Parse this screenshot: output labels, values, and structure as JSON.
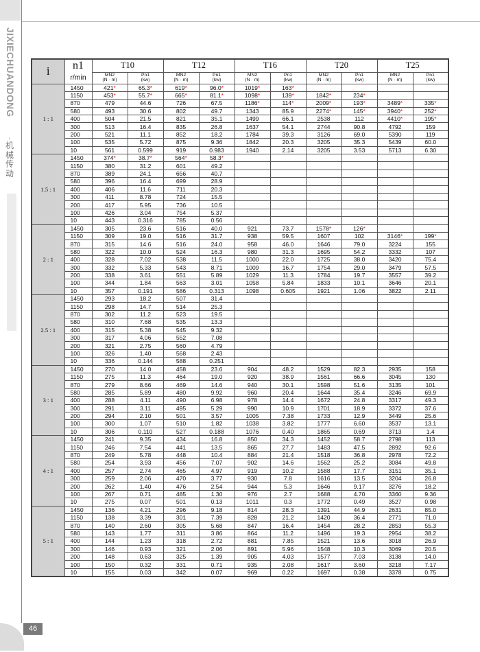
{
  "sidebar": {
    "brand": "JIXIECHUANDONG",
    "brand_cn": "机械传动"
  },
  "page_number": "46",
  "colors": {
    "asterisk": "#e01010",
    "ratio_bg": "#d2d2d2"
  },
  "table": {
    "i_header": "i",
    "n1_header": "n1",
    "n1_unit": "r/min",
    "models": [
      "T10",
      "T12",
      "T16",
      "T20",
      "T25"
    ],
    "sub_headers": [
      [
        "MN2",
        "(N · m)"
      ],
      [
        "Pn1",
        "(kw)"
      ]
    ],
    "groups": [
      {
        "ratio": "1 : 1",
        "rows": [
          [
            "1450",
            "421*",
            "65.3*",
            "619*",
            "96.0*",
            "1019*",
            "163*",
            "",
            "",
            "",
            ""
          ],
          [
            "1150",
            "453*",
            "55.7*",
            "665*",
            "81.1*",
            "1098*",
            "139*",
            "1842*",
            "234*",
            "",
            ""
          ],
          [
            "870",
            "479",
            "44.6",
            "726",
            "67.5",
            "1186*",
            "114*",
            "2009*",
            "193*",
            "3489*",
            "335*"
          ],
          [
            "580",
            "493",
            "30.6",
            "802",
            "49.7",
            "1343",
            "85.9",
            "2274*",
            "145*",
            "3940*",
            "252*"
          ],
          [
            "400",
            "504",
            "21.5",
            "821",
            "35.1",
            "1499",
            "66.1",
            "2538",
            "112",
            "4410*",
            "195*"
          ],
          [
            "300",
            "513",
            "16.4",
            "835",
            "26.8",
            "1637",
            "54.1",
            "2744",
            "90.8",
            "4792",
            "159"
          ],
          [
            "200",
            "521",
            "11.1",
            "852",
            "18.2",
            "1784",
            "39.3",
            "3126",
            "69.0",
            "5390",
            "119"
          ],
          [
            "100",
            "535",
            "5.72",
            "875",
            "9.36",
            "1842",
            "20.3",
            "3205",
            "35.3",
            "5439",
            "60.0"
          ],
          [
            "10",
            "561",
            "0.599",
            "919",
            "0.983",
            "1940",
            "2.14",
            "3205",
            "3.53",
            "5713",
            "6.30"
          ]
        ]
      },
      {
        "ratio": "1.5 : 1",
        "rows": [
          [
            "1450",
            "374*",
            "38.7*",
            "564*",
            "58.3*",
            "",
            "",
            "",
            "",
            "",
            ""
          ],
          [
            "1150",
            "380",
            "31.2",
            "601",
            "49.2",
            "",
            "",
            "",
            "",
            "",
            ""
          ],
          [
            "870",
            "389",
            "24.1",
            "656",
            "40.7",
            "",
            "",
            "",
            "",
            "",
            ""
          ],
          [
            "580",
            "396",
            "16.4",
            "699",
            "28.9",
            "",
            "",
            "",
            "",
            "",
            ""
          ],
          [
            "400",
            "406",
            "11.6",
            "711",
            "20.3",
            "",
            "",
            "",
            "",
            "",
            ""
          ],
          [
            "300",
            "411",
            "8.78",
            "724",
            "15.5",
            "",
            "",
            "",
            "",
            "",
            ""
          ],
          [
            "200",
            "417",
            "5.95",
            "736",
            "10.5",
            "",
            "",
            "",
            "",
            "",
            ""
          ],
          [
            "100",
            "426",
            "3.04",
            "754",
            "5.37",
            "",
            "",
            "",
            "",
            "",
            ""
          ],
          [
            "10",
            "443",
            "0.316",
            "785",
            "0.56",
            "",
            "",
            "",
            "",
            "",
            ""
          ]
        ]
      },
      {
        "ratio": "2 : 1",
        "rows": [
          [
            "1450",
            "305",
            "23.6",
            "516",
            "40.0",
            "921",
            "73.7",
            "1578*",
            "126*",
            "",
            ""
          ],
          [
            "1150",
            "309",
            "19.0",
            "516",
            "31.7",
            "938",
            "59.5",
            "1607",
            "102",
            "3146*",
            "199*"
          ],
          [
            "870",
            "315",
            "14.6",
            "516",
            "24.0",
            "958",
            "46.0",
            "1646",
            "79.0",
            "3224",
            "155"
          ],
          [
            "580",
            "322",
            "10.0",
            "524",
            "16.3",
            "980",
            "31.3",
            "1695",
            "54.2",
            "3332",
            "107"
          ],
          [
            "400",
            "328",
            "7.02",
            "538",
            "11.5",
            "1000",
            "22.0",
            "1725",
            "38.0",
            "3420",
            "75.4"
          ],
          [
            "300",
            "332",
            "5.33",
            "543",
            "8.71",
            "1009",
            "16.7",
            "1754",
            "29.0",
            "3479",
            "57.5"
          ],
          [
            "200",
            "338",
            "3.61",
            "551",
            "5.89",
            "1029",
            "11.3",
            "1784",
            "19.7",
            "3557",
            "39.2"
          ],
          [
            "100",
            "344",
            "1.84",
            "563",
            "3.01",
            "1058",
            "5.84",
            "1833",
            "10.1",
            "3646",
            "20.1"
          ],
          [
            "10",
            "357",
            "0.191",
            "586",
            "0.313",
            "1098",
            "0.605",
            "1921",
            "1.06",
            "3822",
            "2.11"
          ]
        ]
      },
      {
        "ratio": "2.5 : 1",
        "rows": [
          [
            "1450",
            "293",
            "18.2",
            "507",
            "31.4",
            "",
            "",
            "",
            "",
            "",
            ""
          ],
          [
            "1150",
            "298",
            "14.7",
            "514",
            "25.3",
            "",
            "",
            "",
            "",
            "",
            ""
          ],
          [
            "870",
            "302",
            "11.2",
            "523",
            "19.5",
            "",
            "",
            "",
            "",
            "",
            ""
          ],
          [
            "580",
            "310",
            "7.68",
            "535",
            "13.3",
            "",
            "",
            "",
            "",
            "",
            ""
          ],
          [
            "400",
            "315",
            "5.38",
            "545",
            "9.32",
            "",
            "",
            "",
            "",
            "",
            ""
          ],
          [
            "300",
            "317",
            "4.06",
            "552",
            "7.08",
            "",
            "",
            "",
            "",
            "",
            ""
          ],
          [
            "200",
            "321",
            "2.75",
            "560",
            "4.79",
            "",
            "",
            "",
            "",
            "",
            ""
          ],
          [
            "100",
            "326",
            "1.40",
            "568",
            "2.43",
            "",
            "",
            "",
            "",
            "",
            ""
          ],
          [
            "10",
            "336",
            "0.144",
            "588",
            "0.251",
            "",
            "",
            "",
            "",
            "",
            ""
          ]
        ]
      },
      {
        "ratio": "3 : 1",
        "rows": [
          [
            "1450",
            "270",
            "14.0",
            "458",
            "23.6",
            "904",
            "48.2",
            "1529",
            "82.3",
            "2935",
            "158"
          ],
          [
            "1150",
            "275",
            "11.3",
            "464",
            "19.0",
            "920",
            "38.9",
            "1561",
            "66.6",
            "3045",
            "130"
          ],
          [
            "870",
            "279",
            "8.66",
            "469",
            "14.6",
            "940",
            "30.1",
            "1598",
            "51.6",
            "3135",
            "101"
          ],
          [
            "580",
            "285",
            "5.89",
            "480",
            "9.92",
            "960",
            "20.4",
            "1644",
            "35.4",
            "3246",
            "69.9"
          ],
          [
            "400",
            "288",
            "4.11",
            "490",
            "6.98",
            "978",
            "14.4",
            "1672",
            "24.8",
            "3317",
            "49.3"
          ],
          [
            "300",
            "291",
            "3.11",
            "495",
            "5.29",
            "990",
            "10.9",
            "1701",
            "18.9",
            "3372",
            "37.6"
          ],
          [
            "200",
            "294",
            "2.10",
            "501",
            "3.57",
            "1005",
            "7.38",
            "1733",
            "12.9",
            "3449",
            "25.6"
          ],
          [
            "100",
            "300",
            "1.07",
            "510",
            "1.82",
            "1038",
            "3.82",
            "1777",
            "6.60",
            "3537",
            "13.1"
          ],
          [
            "10",
            "306",
            "0.110",
            "527",
            "0.188",
            "1076",
            "0.40",
            "1865",
            "0.69",
            "3713",
            "1.4"
          ]
        ]
      },
      {
        "ratio": "4 : 1",
        "rows": [
          [
            "1450",
            "241",
            "9.35",
            "434",
            "16.8",
            "850",
            "34.3",
            "1452",
            "58.7",
            "2798",
            "113"
          ],
          [
            "1150",
            "246",
            "7.54",
            "441",
            "13.5",
            "865",
            "27.7",
            "1483",
            "47.5",
            "2892",
            "92.6"
          ],
          [
            "870",
            "249",
            "5.78",
            "448",
            "10.4",
            "884",
            "21.4",
            "1518",
            "36.8",
            "2978",
            "72.2"
          ],
          [
            "580",
            "254",
            "3.93",
            "456",
            "7.07",
            "902",
            "14.6",
            "1562",
            "25.2",
            "3084",
            "49.8"
          ],
          [
            "400",
            "257",
            "2.74",
            "465",
            "4.97",
            "919",
            "10.2",
            "1588",
            "17.7",
            "3151",
            "35.1"
          ],
          [
            "300",
            "259",
            "2.06",
            "470",
            "3.77",
            "930",
            "7.8",
            "1616",
            "13.5",
            "3204",
            "26.8"
          ],
          [
            "200",
            "262",
            "1.40",
            "476",
            "2.54",
            "944",
            "5.3",
            "1646",
            "9.17",
            "3276",
            "18.2"
          ],
          [
            "100",
            "267",
            "0.71",
            "485",
            "1.30",
            "976",
            "2.7",
            "1688",
            "4.70",
            "3360",
            "9.36"
          ],
          [
            "10",
            "275",
            "0.07",
            "501",
            "0.13",
            "1011",
            "0.3",
            "1772",
            "0.49",
            "3527",
            "0.98"
          ]
        ]
      },
      {
        "ratio": "5 : 1",
        "rows": [
          [
            "1450",
            "136",
            "4.21",
            "296",
            "9.18",
            "814",
            "28.3",
            "1391",
            "44.9",
            "2631",
            "85.0"
          ],
          [
            "1150",
            "138",
            "3.39",
            "301",
            "7.39",
            "828",
            "21.2",
            "1420",
            "36.4",
            "2771",
            "71.0"
          ],
          [
            "870",
            "140",
            "2.60",
            "305",
            "5.68",
            "847",
            "16.4",
            "1454",
            "28.2",
            "2853",
            "55.3"
          ],
          [
            "580",
            "143",
            "1.77",
            "311",
            "3.86",
            "864",
            "11.2",
            "1496",
            "19.3",
            "2954",
            "38.2"
          ],
          [
            "400",
            "144",
            "1.23",
            "318",
            "2.72",
            "881",
            "7.85",
            "1521",
            "13.6",
            "3018",
            "26.9"
          ],
          [
            "300",
            "146",
            "0.93",
            "321",
            "2.06",
            "891",
            "5.96",
            "1548",
            "10.3",
            "3069",
            "20.5"
          ],
          [
            "200",
            "148",
            "0.63",
            "325",
            "1.39",
            "905",
            "4.03",
            "1577",
            "7.03",
            "3138",
            "14.0"
          ],
          [
            "100",
            "150",
            "0.32",
            "331",
            "0.71",
            "935",
            "2.08",
            "1617",
            "3.60",
            "3218",
            "7.17"
          ],
          [
            "10",
            "155",
            "0.03",
            "342",
            "0.07",
            "969",
            "0.22",
            "1697",
            "0.38",
            "3378",
            "0.75"
          ]
        ]
      }
    ]
  }
}
